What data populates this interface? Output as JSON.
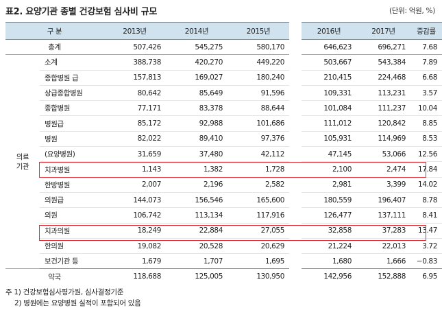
{
  "title": "표2. 요양기관 종별 건강보험 심사비 규모",
  "unit": "(단위: 억원, %)",
  "table": {
    "headers": [
      "구 분",
      "2013년",
      "2014년",
      "2015년",
      "2016년",
      "2017년",
      "증감률"
    ],
    "group_label": "의료\n기관",
    "total": {
      "label": "총계",
      "values": [
        "507,426",
        "545,275",
        "580,170",
        "646,623",
        "696,271",
        "7.68"
      ]
    },
    "rows": [
      {
        "label": "소계",
        "values": [
          "388,738",
          "420,270",
          "449,220",
          "503,667",
          "543,384",
          "7.89"
        ]
      },
      {
        "label": "종합병원 급",
        "values": [
          "157,813",
          "169,027",
          "180,240",
          "210,415",
          "224,468",
          "6.68"
        ]
      },
      {
        "label": "상급종합병원",
        "values": [
          "80,642",
          "85,649",
          "91,596",
          "109,331",
          "113,231",
          "3.57"
        ]
      },
      {
        "label": "종합병원",
        "values": [
          "77,171",
          "83,378",
          "88,644",
          "101,084",
          "111,237",
          "10.04"
        ]
      },
      {
        "label": "병원급",
        "values": [
          "85,172",
          "92,988",
          "101,686",
          "111,012",
          "120,842",
          "8.85"
        ]
      },
      {
        "label": "병원",
        "values": [
          "82,022",
          "89,410",
          "97,376",
          "105,931",
          "114,969",
          "8.53"
        ]
      },
      {
        "label": "(요양병원)",
        "values": [
          "31,659",
          "37,480",
          "42,112",
          "47,145",
          "53,066",
          "12.56"
        ]
      },
      {
        "label": "치과병원",
        "values": [
          "1,143",
          "1,382",
          "1,728",
          "2,100",
          "2,474",
          "17.84"
        ]
      },
      {
        "label": "한방병원",
        "values": [
          "2,007",
          "2,196",
          "2,582",
          "2,981",
          "3,399",
          "14.02"
        ]
      },
      {
        "label": "의원급",
        "values": [
          "144,073",
          "156,546",
          "165,600",
          "180,559",
          "196,407",
          "8.78"
        ]
      },
      {
        "label": "의원",
        "values": [
          "106,742",
          "113,134",
          "117,916",
          "126,477",
          "137,111",
          "8.41"
        ]
      },
      {
        "label": "치과의원",
        "values": [
          "18,249",
          "22,884",
          "27,055",
          "32,858",
          "37,283",
          "13.47"
        ]
      },
      {
        "label": "한의원",
        "values": [
          "19,082",
          "20,528",
          "20,629",
          "21,224",
          "22,013",
          "3.72"
        ]
      },
      {
        "label": "보건기관 등",
        "values": [
          "1,679",
          "1,707",
          "1,695",
          "1,680",
          "1,666",
          "−0.83"
        ]
      }
    ],
    "pharmacy": {
      "label": "약국",
      "values": [
        "118,688",
        "125,005",
        "130,950",
        "142,956",
        "152,888",
        "6.95"
      ]
    }
  },
  "notes": [
    "주 1) 건강보험심사평가원, 심사결정기준",
    "2) 병원에는 요양병원 실적이 포함되어 있음"
  ],
  "colors": {
    "header_bg": "#cfe2ee",
    "highlight": "#e0323a"
  }
}
